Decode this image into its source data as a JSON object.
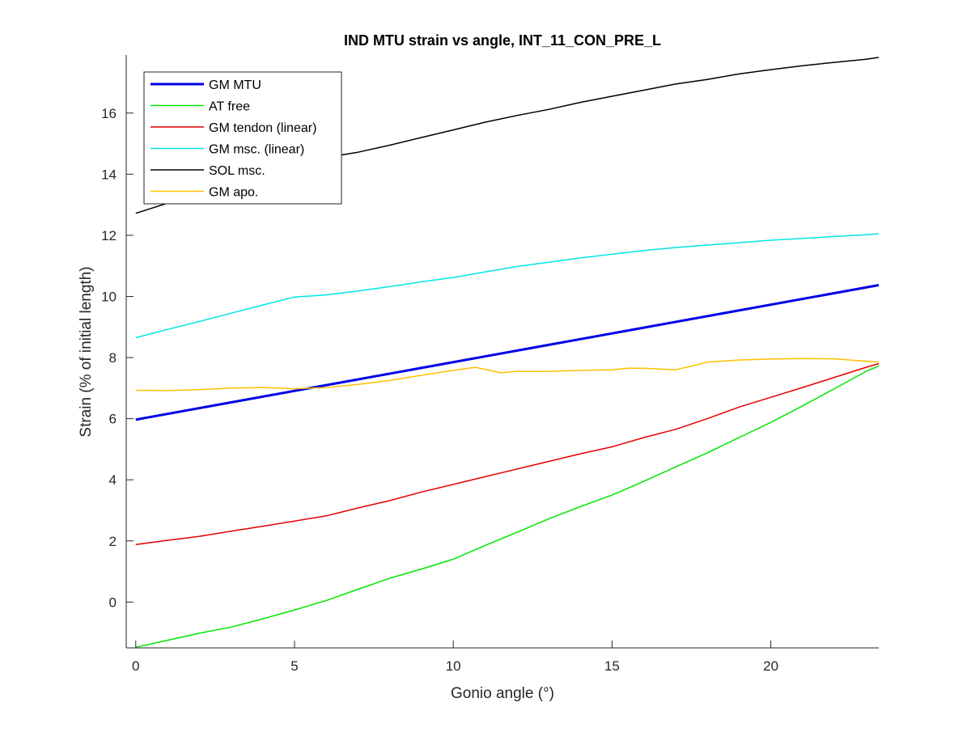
{
  "chart_data": {
    "type": "line",
    "title": "IND MTU strain vs angle, INT_11_CON_PRE_L",
    "xlabel": "Gonio angle (°)",
    "ylabel": "Strain (% of initial length)",
    "xlim": [
      -0.3,
      23.4
    ],
    "ylim": [
      -1.5,
      17.9
    ],
    "xticks": [
      0,
      5,
      10,
      15,
      20
    ],
    "xtick_labels": [
      "0",
      "5",
      "10",
      "15",
      "20"
    ],
    "yticks": [
      0,
      2,
      4,
      6,
      8,
      10,
      12,
      14,
      16
    ],
    "ytick_labels": [
      "0",
      "2",
      "4",
      "6",
      "8",
      "10",
      "12",
      "14",
      "16"
    ],
    "grid": false,
    "legend_position": "top-left",
    "series": [
      {
        "name": "GM MTU",
        "color": "#0000e6",
        "width": 3,
        "x": [
          0,
          23.4
        ],
        "y": [
          5.97,
          10.37
        ]
      },
      {
        "name": "AT free",
        "color": "#00e600",
        "width": 1.5,
        "x": [
          0,
          1,
          2,
          3,
          4,
          5,
          6,
          7,
          8,
          9,
          10,
          11,
          12,
          13,
          14,
          15,
          16,
          17,
          18,
          19,
          20,
          21,
          22,
          23,
          23.4
        ],
        "y": [
          -1.48,
          -1.25,
          -1.02,
          -0.82,
          -0.55,
          -0.26,
          0.05,
          0.42,
          0.78,
          1.08,
          1.4,
          1.85,
          2.28,
          2.72,
          3.12,
          3.5,
          3.95,
          4.42,
          4.88,
          5.38,
          5.88,
          6.42,
          6.98,
          7.55,
          7.72
        ]
      },
      {
        "name": "GM tendon (linear)",
        "color": "#e60000",
        "width": 1.5,
        "x": [
          0,
          1,
          2,
          3,
          4,
          5,
          6,
          7,
          8,
          9,
          10,
          11,
          12,
          13,
          14,
          15,
          16,
          17,
          18,
          19,
          20,
          21,
          22,
          23,
          23.4
        ],
        "y": [
          1.88,
          2.02,
          2.15,
          2.32,
          2.48,
          2.65,
          2.82,
          3.08,
          3.32,
          3.6,
          3.85,
          4.1,
          4.35,
          4.6,
          4.85,
          5.08,
          5.38,
          5.65,
          6.0,
          6.38,
          6.7,
          7.02,
          7.35,
          7.68,
          7.8
        ]
      },
      {
        "name": "GM msc. (linear)",
        "color": "#00e6e6",
        "width": 1.5,
        "x": [
          0,
          1,
          2,
          3,
          4,
          5,
          6,
          7,
          8,
          9,
          10,
          11,
          12,
          13,
          14,
          15,
          16,
          17,
          18,
          19,
          20,
          21,
          22,
          23,
          23.4
        ],
        "y": [
          8.65,
          8.92,
          9.18,
          9.45,
          9.72,
          9.98,
          10.05,
          10.18,
          10.32,
          10.48,
          10.62,
          10.8,
          10.98,
          11.12,
          11.26,
          11.38,
          11.5,
          11.6,
          11.68,
          11.76,
          11.84,
          11.9,
          11.96,
          12.02,
          12.05
        ]
      },
      {
        "name": "SOL msc.",
        "color": "#000000",
        "width": 1.5,
        "x": [
          0,
          1,
          2,
          3,
          4,
          5,
          6,
          7,
          8,
          9,
          10,
          11,
          12,
          13,
          14,
          15,
          16,
          17,
          18,
          19,
          20,
          21,
          22,
          23,
          23.4
        ],
        "y": [
          12.72,
          13.05,
          13.45,
          13.8,
          14.08,
          14.35,
          14.55,
          14.72,
          14.95,
          15.2,
          15.45,
          15.7,
          15.92,
          16.12,
          16.35,
          16.55,
          16.75,
          16.95,
          17.1,
          17.28,
          17.42,
          17.55,
          17.66,
          17.76,
          17.82
        ]
      },
      {
        "name": "GM apo.",
        "color": "#ffbf00",
        "width": 1.5,
        "x": [
          0,
          1,
          2,
          3,
          4,
          5,
          6,
          7,
          8,
          9,
          10,
          10.7,
          11.5,
          12,
          13,
          14,
          15,
          15.5,
          16,
          17,
          17.5,
          18,
          19,
          20,
          21,
          22,
          23,
          23.4
        ],
        "y": [
          6.93,
          6.92,
          6.95,
          7.0,
          7.02,
          6.98,
          7.02,
          7.12,
          7.25,
          7.42,
          7.58,
          7.68,
          7.5,
          7.55,
          7.55,
          7.58,
          7.6,
          7.65,
          7.65,
          7.6,
          7.72,
          7.85,
          7.92,
          7.95,
          7.97,
          7.96,
          7.88,
          7.85
        ]
      }
    ]
  }
}
